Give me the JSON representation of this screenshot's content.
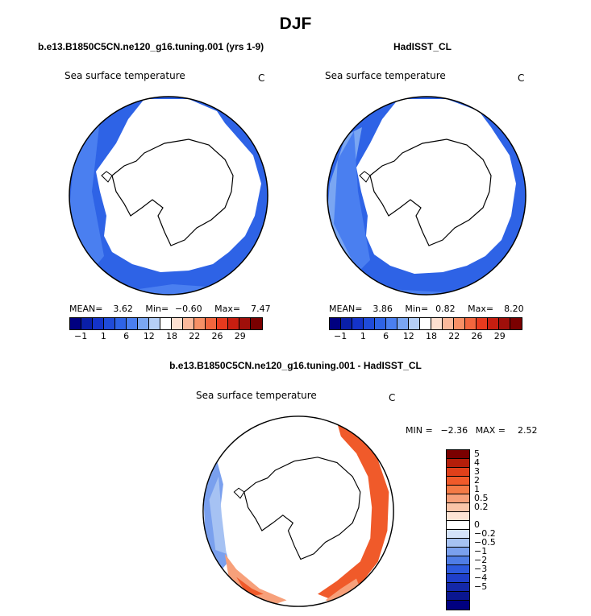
{
  "header": {
    "title": "DJF"
  },
  "panels": [
    {
      "title": "b.e13.B1850C5CN.ne120_g16.tuning.001 (yrs 1-9)",
      "variable": "Sea surface temperature",
      "units": "C",
      "stats": {
        "mean_label": "MEAN=",
        "mean": "3.62",
        "min_label": "Min=",
        "min": "−0.60",
        "max_label": "Max=",
        "max": "7.47"
      }
    },
    {
      "title": "HadISST_CL",
      "variable": "Sea surface temperature",
      "units": "C",
      "stats": {
        "mean_label": "MEAN=",
        "mean": "3.86",
        "min_label": "Min=",
        "min": "0.82",
        "max_label": "Max=",
        "max": "8.20"
      }
    },
    {
      "title": "b.e13.B1850C5CN.ne120_g16.tuning.001 - HadISST_CL",
      "variable": "Sea surface temperature",
      "units": "C",
      "stats": {
        "min_label": "MIN =",
        "min": "−2.36",
        "max_label": "MAX =",
        "max": "2.52"
      }
    }
  ],
  "colorbar_sst": {
    "colors": [
      "#000080",
      "#0a1fa8",
      "#1433c8",
      "#1f4bd9",
      "#2e63e6",
      "#4a7ff0",
      "#7aa6f2",
      "#b5cff7",
      "#ffffff",
      "#fde0d0",
      "#fbb99b",
      "#f79066",
      "#f2663e",
      "#e83a1e",
      "#c81e10",
      "#a00f0a",
      "#7a0000"
    ],
    "labels": [
      "−1",
      "1",
      "6",
      "12",
      "18",
      "22",
      "26",
      "29"
    ]
  },
  "colorbar_diff": {
    "colors": [
      "#7a0000",
      "#b41e0a",
      "#e0401a",
      "#f05a2a",
      "#f47a46",
      "#f7a07a",
      "#fac4a8",
      "#fde4d4",
      "#ffffff",
      "#d4e3fa",
      "#a6c2f3",
      "#7aa0ee",
      "#4f7de6",
      "#2d5ade",
      "#1f3fca",
      "#1428a8",
      "#0a1690",
      "#000080"
    ],
    "labels": [
      "5",
      "4",
      "3",
      "2",
      "1",
      "0.5",
      "0.2",
      "0",
      "−0.2",
      "−0.5",
      "−1",
      "−2",
      "−3",
      "−4",
      "−5"
    ]
  },
  "map_colors": {
    "ocean_mid": "#2e63e6",
    "ocean_light": "#4a7ff0",
    "ocean_pale": "#7aa6f2",
    "diff_warm": "#f05a2a",
    "diff_warm_light": "#f7a07a",
    "diff_cool": "#7aa0ee",
    "diff_cool_light": "#d4e3fa"
  }
}
